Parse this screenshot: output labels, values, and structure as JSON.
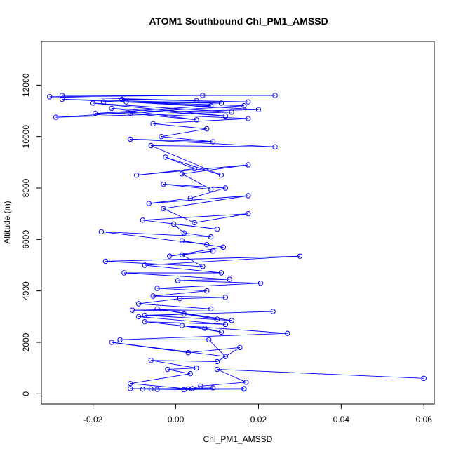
{
  "chart_data": {
    "type": "line",
    "title": "ATOM1 Southbound Chl_PM1_AMSSD",
    "xlabel": "Chl_PM1_AMSSD",
    "ylabel": "Altitude (m)",
    "xlim": [
      -0.0325,
      0.0625
    ],
    "ylim": [
      -400,
      13700
    ],
    "xticks": [
      -0.02,
      0.0,
      0.02,
      0.04,
      0.06
    ],
    "xtick_labels": [
      "-0.02",
      "0.00",
      "0.02",
      "0.04",
      "0.06"
    ],
    "yticks": [
      0,
      2000,
      4000,
      6000,
      8000,
      10000,
      12000
    ],
    "ytick_labels": [
      "0",
      "2000",
      "4000",
      "6000",
      "8000",
      "10000",
      "12000"
    ],
    "grid": false,
    "line_color": "#0000ff",
    "marker": "open-circle",
    "series": [
      {
        "name": "Chl_PM1_AMSSD",
        "points": [
          [
            0.06,
            600
          ],
          [
            0.01,
            950
          ],
          [
            0.017,
            450
          ],
          [
            0.006,
            300
          ],
          [
            0.004,
            200
          ],
          [
            -0.011,
            200
          ],
          [
            -0.006,
            190
          ],
          [
            0.0165,
            180
          ],
          [
            0.002,
            160
          ],
          [
            -0.008,
            180
          ],
          [
            0.009,
            230
          ],
          [
            -0.0045,
            170
          ],
          [
            0.0165,
            200
          ],
          [
            0.003,
            190
          ],
          [
            -0.011,
            400
          ],
          [
            0.0035,
            780
          ],
          [
            -0.002,
            950
          ],
          [
            0.005,
            1000
          ],
          [
            -0.006,
            1300
          ],
          [
            0.01,
            1250
          ],
          [
            0.0155,
            1800
          ],
          [
            0.003,
            1600
          ],
          [
            -0.0155,
            2000
          ],
          [
            0.012,
            1450
          ],
          [
            0.008,
            2100
          ],
          [
            -0.0135,
            2100
          ],
          [
            0.027,
            2350
          ],
          [
            0.0015,
            2650
          ],
          [
            0.011,
            2400
          ],
          [
            0.007,
            2550
          ],
          [
            -0.0075,
            2800
          ],
          [
            0.012,
            2700
          ],
          [
            -0.009,
            3000
          ],
          [
            0.002,
            3100
          ],
          [
            0.01,
            2900
          ],
          [
            -0.0045,
            3300
          ],
          [
            0.0135,
            2850
          ],
          [
            -0.0075,
            3050
          ],
          [
            0.0235,
            3200
          ],
          [
            -0.0105,
            3250
          ],
          [
            0.0085,
            3300
          ],
          [
            -0.009,
            3500
          ],
          [
            0.001,
            3700
          ],
          [
            0.012,
            3750
          ],
          [
            -0.0055,
            3800
          ],
          [
            0.0075,
            4000
          ],
          [
            -0.0045,
            4100
          ],
          [
            0.0205,
            4300
          ],
          [
            0.0005,
            4400
          ],
          [
            0.013,
            4450
          ],
          [
            -0.0125,
            4700
          ],
          [
            0.011,
            4700
          ],
          [
            -0.0075,
            5000
          ],
          [
            0.03,
            5350
          ],
          [
            -0.017,
            5150
          ],
          [
            0.0065,
            4950
          ],
          [
            0.0015,
            5400
          ],
          [
            0.009,
            5550
          ],
          [
            -0.0015,
            5350
          ],
          [
            0.0115,
            5700
          ],
          [
            0.0015,
            5950
          ],
          [
            0.0075,
            5800
          ],
          [
            -0.018,
            6300
          ],
          [
            0.0085,
            6100
          ],
          [
            0.002,
            6250
          ],
          [
            -0.0005,
            6600
          ],
          [
            0.01,
            6400
          ],
          [
            -0.008,
            6750
          ],
          [
            0.0175,
            7000
          ],
          [
            0.0045,
            6650
          ],
          [
            -0.003,
            7200
          ],
          [
            0.0175,
            7700
          ],
          [
            -0.0065,
            7400
          ],
          [
            0.0035,
            7600
          ],
          [
            0.012,
            8000
          ],
          [
            -0.003,
            8150
          ],
          [
            0.0085,
            7950
          ],
          [
            0.0015,
            8550
          ],
          [
            0.0175,
            8900
          ],
          [
            -0.0095,
            8500
          ],
          [
            0.0045,
            8750
          ],
          [
            -0.0025,
            9200
          ],
          [
            0.011,
            8500
          ],
          [
            -0.006,
            9650
          ],
          [
            0.024,
            9600
          ],
          [
            -0.011,
            9900
          ],
          [
            0.009,
            9800
          ],
          [
            -0.0035,
            10000
          ],
          [
            0.0075,
            10300
          ],
          [
            -0.0055,
            10500
          ],
          [
            0.0175,
            10700
          ],
          [
            -0.011,
            10900
          ],
          [
            0.005,
            10650
          ],
          [
            -0.0155,
            11100
          ],
          [
            0.012,
            10800
          ],
          [
            -0.02,
            11300
          ],
          [
            0.0135,
            10950
          ],
          [
            -0.029,
            10750
          ],
          [
            0.0165,
            11200
          ],
          [
            -0.012,
            11350
          ],
          [
            0.02,
            11050
          ],
          [
            -0.0195,
            10900
          ],
          [
            0.0085,
            11200
          ],
          [
            -0.0275,
            11450
          ],
          [
            0.011,
            11300
          ],
          [
            -0.0175,
            11350
          ],
          [
            0.0175,
            11350
          ],
          [
            -0.013,
            11450
          ],
          [
            0.005,
            11400
          ],
          [
            -0.0305,
            11550
          ],
          [
            0.0065,
            11600
          ],
          [
            -0.0275,
            11600
          ],
          [
            0.024,
            11600
          ]
        ]
      }
    ]
  }
}
